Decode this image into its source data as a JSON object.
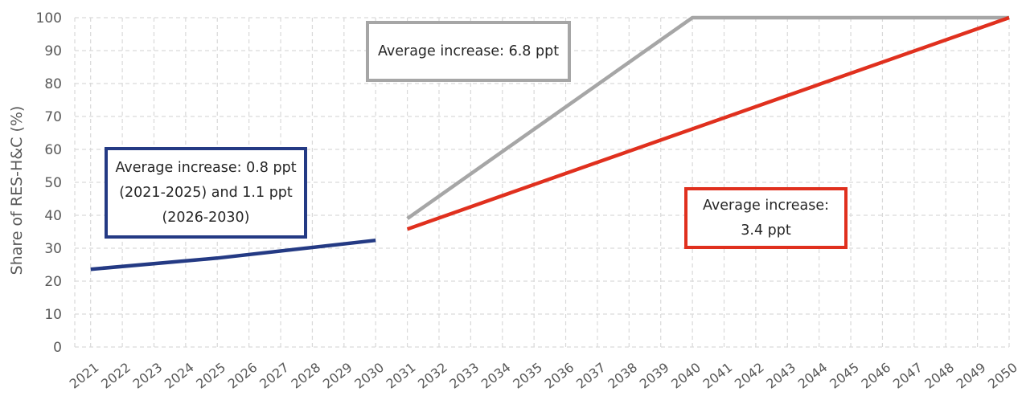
{
  "chart_data": {
    "type": "line",
    "ylabel": "Share of RES-H&C (%)",
    "xlabel": "",
    "ylim": [
      0,
      100
    ],
    "yticks": [
      0,
      10,
      20,
      30,
      40,
      50,
      60,
      70,
      80,
      90,
      100
    ],
    "categories": [
      "2021",
      "2022",
      "2023",
      "2024",
      "2025",
      "2026",
      "2027",
      "2028",
      "2029",
      "2030",
      "2031",
      "2032",
      "2033",
      "2034",
      "2035",
      "2036",
      "2037",
      "2038",
      "2039",
      "2040",
      "2041",
      "2042",
      "2043",
      "2044",
      "2045",
      "2046",
      "2047",
      "2048",
      "2049",
      "2050"
    ],
    "grid": true,
    "legend": "none",
    "series": [
      {
        "color": "#243a84",
        "points": [
          [
            "2021",
            23.6
          ],
          [
            "2025",
            27
          ],
          [
            "2030",
            32.4
          ]
        ]
      },
      {
        "color": "#a6a6a6",
        "points": [
          [
            "2031",
            39
          ],
          [
            "2040",
            100
          ],
          [
            "2050",
            100
          ]
        ]
      },
      {
        "color": "#e0301e",
        "points": [
          [
            "2031",
            35.8
          ],
          [
            "2050",
            100
          ]
        ]
      }
    ],
    "annotations": [
      {
        "text": "Average increase: 0.8 ppt (2021-2025) and 1.1 ppt (2026-2030)",
        "color": "#243a84"
      },
      {
        "text": "Average increase: 6.8 ppt",
        "color": "#a6a6a6"
      },
      {
        "text": "Average increase: 3.4 ppt",
        "color": "#e0301e"
      }
    ]
  }
}
